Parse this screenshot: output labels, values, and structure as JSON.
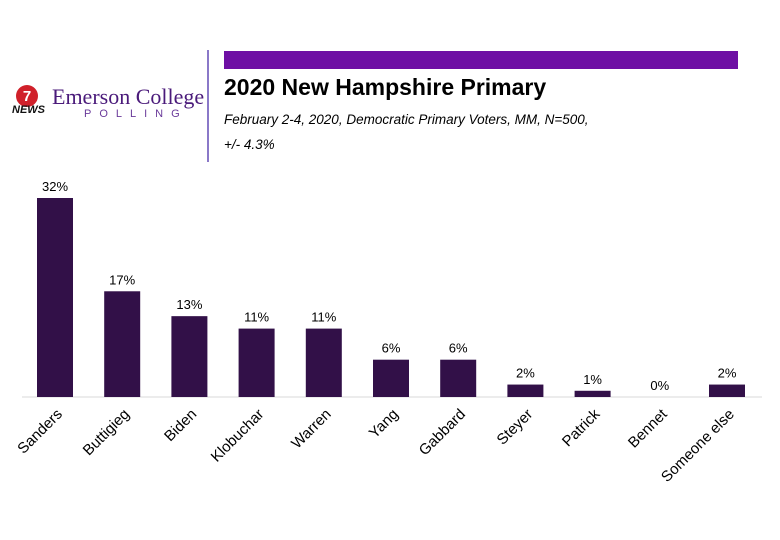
{
  "header": {
    "logo_badge_text": "7",
    "logo_news": "NEWS",
    "logo_name": "Emerson College",
    "logo_polling": "POLLING",
    "accent_color": "#6e0fa4",
    "logo_badge_color": "#d0202a"
  },
  "chart_data": {
    "type": "bar",
    "title": "2020 New Hampshire Primary",
    "subtitle_line1": "February 2-4, 2020, Democratic Primary Voters, MM,  N=500,",
    "subtitle_line2": "+/-  4.3%",
    "categories": [
      "Sanders",
      "Buttigieg",
      "Biden",
      "Klobuchar",
      "Warren",
      "Yang",
      "Gabbard",
      "Steyer",
      "Patrick",
      "Bennet",
      "Someone else"
    ],
    "values": [
      32,
      17,
      13,
      11,
      11,
      6,
      6,
      2,
      1,
      0,
      2
    ],
    "data_labels": [
      "32%",
      "17%",
      "13%",
      "11%",
      "11%",
      "6%",
      "6%",
      "2%",
      "1%",
      "0%",
      "2%"
    ],
    "bar_color": "#321048",
    "ylim": [
      0,
      32
    ],
    "xlabel": "",
    "ylabel": "",
    "grid": false,
    "legend": "none"
  }
}
